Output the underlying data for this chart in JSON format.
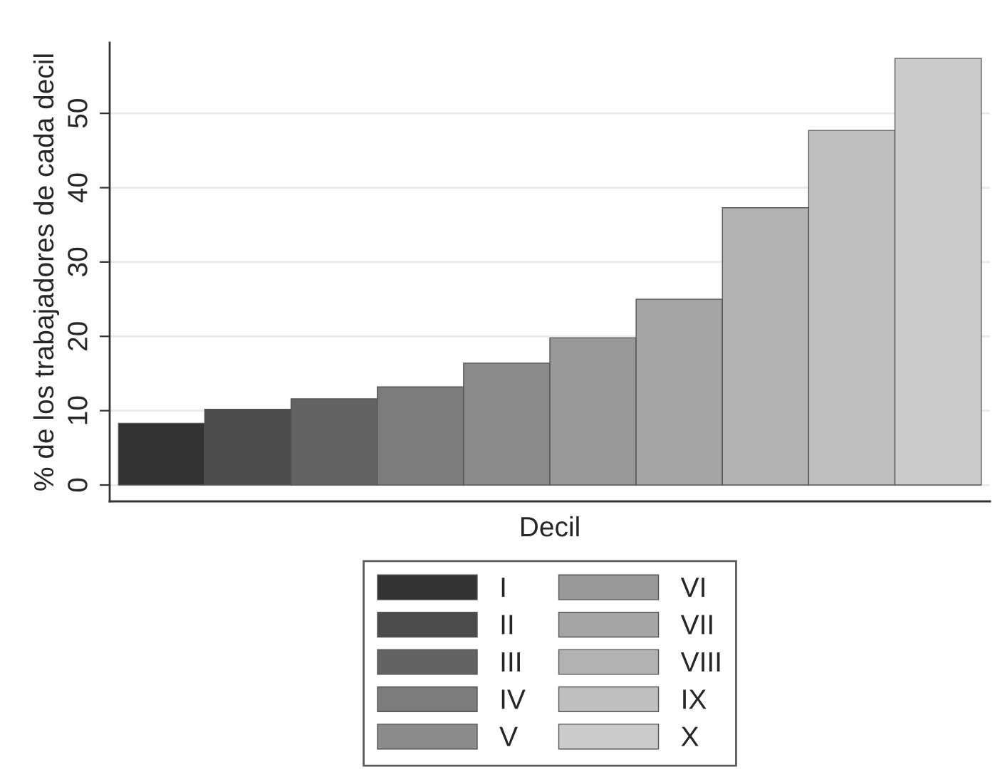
{
  "chart_data": {
    "type": "bar",
    "ylabel": "% de los trabajadores de cada decil",
    "xlabel": "Decil",
    "categories": [
      null
    ],
    "series": [
      {
        "name": "I",
        "color": "#333333",
        "values": [
          8.3
        ]
      },
      {
        "name": "II",
        "color": "#4b4b4b",
        "values": [
          10.2
        ]
      },
      {
        "name": "III",
        "color": "#636363",
        "values": [
          11.6
        ]
      },
      {
        "name": "IV",
        "color": "#7c7c7c",
        "values": [
          13.2
        ]
      },
      {
        "name": "V",
        "color": "#8b8b8b",
        "values": [
          16.4
        ]
      },
      {
        "name": "VI",
        "color": "#989898",
        "values": [
          19.8
        ]
      },
      {
        "name": "VII",
        "color": "#a5a5a5",
        "values": [
          25.0
        ]
      },
      {
        "name": "VIII",
        "color": "#b2b2b2",
        "values": [
          37.3
        ]
      },
      {
        "name": "IX",
        "color": "#bfbfbf",
        "values": [
          47.7
        ]
      },
      {
        "name": "X",
        "color": "#cbcbcb",
        "values": [
          57.4
        ]
      }
    ],
    "ylim": [
      -2.2,
      59.5
    ],
    "yticks": [
      0,
      10,
      20,
      30,
      40,
      50
    ],
    "grid": "y",
    "legend": "bottom"
  }
}
